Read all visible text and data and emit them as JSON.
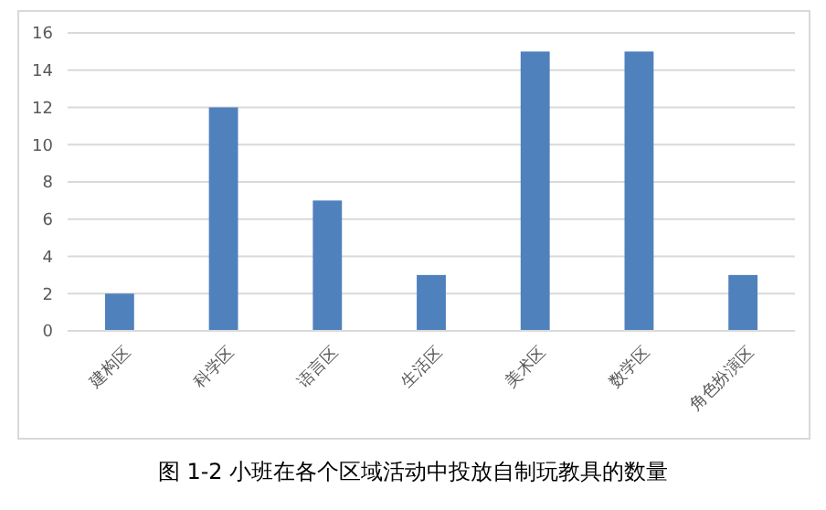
{
  "chart_data": {
    "type": "bar",
    "categories": [
      "建构区",
      "科学区",
      "语言区",
      "生活区",
      "美术区",
      "数学区",
      "角色扮演区"
    ],
    "values": [
      2,
      12,
      7,
      3,
      15,
      15,
      3
    ],
    "color": "#4f81bd",
    "ylim": [
      0,
      16
    ],
    "yticks": [
      0,
      2,
      4,
      6,
      8,
      10,
      12,
      14,
      16
    ],
    "grid": "y",
    "annotations": [
      "图 1-2 小班在各个区域活动中投放自制玩教具的数量"
    ]
  }
}
